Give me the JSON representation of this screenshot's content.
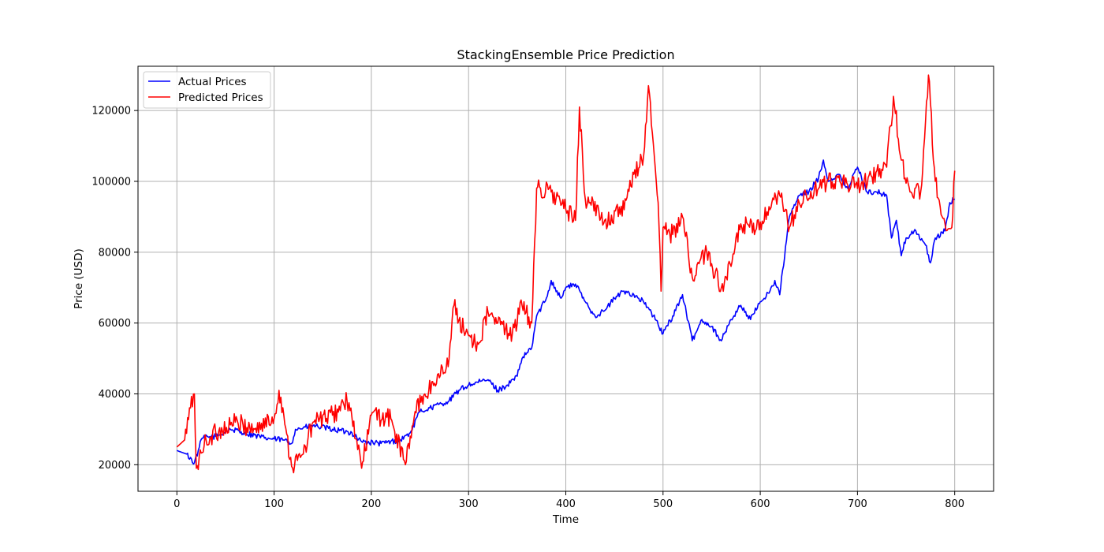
{
  "chart_data": {
    "type": "line",
    "title": "StackingEnsemble Price Prediction",
    "xlabel": "Time",
    "ylabel": "Price (USD)",
    "xlim": [
      -40,
      840
    ],
    "ylim": [
      12500,
      132500
    ],
    "xticks": [
      0,
      100,
      200,
      300,
      400,
      500,
      600,
      700,
      800
    ],
    "yticks": [
      20000,
      40000,
      60000,
      80000,
      100000,
      120000
    ],
    "grid": true,
    "legend": "top-left",
    "series": [
      {
        "name": "Actual Prices",
        "color": "#0000ff",
        "anchors": [
          [
            0,
            24000
          ],
          [
            10,
            23000
          ],
          [
            18,
            20500
          ],
          [
            22,
            24000
          ],
          [
            26,
            27500
          ],
          [
            40,
            28000
          ],
          [
            55,
            30000
          ],
          [
            70,
            29000
          ],
          [
            90,
            27500
          ],
          [
            110,
            27000
          ],
          [
            118,
            26000
          ],
          [
            122,
            30000
          ],
          [
            140,
            31000
          ],
          [
            160,
            30000
          ],
          [
            180,
            29000
          ],
          [
            190,
            26500
          ],
          [
            210,
            26000
          ],
          [
            230,
            27000
          ],
          [
            240,
            29000
          ],
          [
            250,
            35000
          ],
          [
            260,
            36000
          ],
          [
            280,
            38000
          ],
          [
            290,
            41000
          ],
          [
            300,
            42500
          ],
          [
            320,
            44000
          ],
          [
            330,
            41000
          ],
          [
            340,
            42500
          ],
          [
            350,
            45000
          ],
          [
            355,
            50000
          ],
          [
            365,
            53000
          ],
          [
            370,
            62000
          ],
          [
            380,
            67000
          ],
          [
            385,
            72000
          ],
          [
            395,
            67000
          ],
          [
            400,
            70000
          ],
          [
            410,
            71000
          ],
          [
            420,
            66000
          ],
          [
            430,
            62000
          ],
          [
            440,
            63500
          ],
          [
            450,
            67000
          ],
          [
            460,
            69000
          ],
          [
            470,
            68000
          ],
          [
            480,
            66000
          ],
          [
            490,
            62000
          ],
          [
            500,
            57000
          ],
          [
            510,
            62000
          ],
          [
            520,
            68000
          ],
          [
            530,
            55000
          ],
          [
            540,
            61000
          ],
          [
            550,
            59000
          ],
          [
            560,
            55000
          ],
          [
            570,
            61000
          ],
          [
            580,
            65000
          ],
          [
            590,
            61000
          ],
          [
            600,
            66000
          ],
          [
            610,
            69000
          ],
          [
            615,
            72000
          ],
          [
            620,
            68000
          ],
          [
            630,
            90000
          ],
          [
            640,
            96000
          ],
          [
            650,
            97000
          ],
          [
            660,
            101000
          ],
          [
            665,
            106000
          ],
          [
            670,
            100000
          ],
          [
            680,
            102000
          ],
          [
            690,
            98000
          ],
          [
            700,
            104000
          ],
          [
            710,
            97000
          ],
          [
            720,
            97000
          ],
          [
            730,
            96000
          ],
          [
            735,
            84000
          ],
          [
            740,
            89000
          ],
          [
            745,
            79000
          ],
          [
            750,
            84000
          ],
          [
            760,
            86000
          ],
          [
            770,
            82000
          ],
          [
            775,
            77000
          ],
          [
            780,
            84000
          ],
          [
            790,
            86000
          ],
          [
            795,
            94000
          ],
          [
            800,
            95000
          ]
        ]
      },
      {
        "name": "Predicted Prices",
        "color": "#ff0000",
        "anchors": [
          [
            0,
            25000
          ],
          [
            8,
            27000
          ],
          [
            14,
            36000
          ],
          [
            18,
            40000
          ],
          [
            20,
            19000
          ],
          [
            30,
            27000
          ],
          [
            40,
            29000
          ],
          [
            60,
            32000
          ],
          [
            80,
            30000
          ],
          [
            100,
            33000
          ],
          [
            105,
            41000
          ],
          [
            110,
            34000
          ],
          [
            118,
            19500
          ],
          [
            130,
            23000
          ],
          [
            140,
            32000
          ],
          [
            160,
            34000
          ],
          [
            175,
            38000
          ],
          [
            185,
            27000
          ],
          [
            190,
            19000
          ],
          [
            200,
            34000
          ],
          [
            220,
            33000
          ],
          [
            235,
            20000
          ],
          [
            245,
            35000
          ],
          [
            255,
            40000
          ],
          [
            265,
            43000
          ],
          [
            280,
            50000
          ],
          [
            285,
            65000
          ],
          [
            295,
            58000
          ],
          [
            310,
            54000
          ],
          [
            320,
            63000
          ],
          [
            330,
            60000
          ],
          [
            345,
            57000
          ],
          [
            355,
            65000
          ],
          [
            365,
            60000
          ],
          [
            370,
            98000
          ],
          [
            385,
            97000
          ],
          [
            400,
            92000
          ],
          [
            410,
            89000
          ],
          [
            414,
            121000
          ],
          [
            420,
            95000
          ],
          [
            440,
            89000
          ],
          [
            460,
            92000
          ],
          [
            470,
            102000
          ],
          [
            480,
            107000
          ],
          [
            485,
            127000
          ],
          [
            495,
            94000
          ],
          [
            498,
            69000
          ],
          [
            500,
            87000
          ],
          [
            510,
            85000
          ],
          [
            520,
            90000
          ],
          [
            530,
            73000
          ],
          [
            545,
            80000
          ],
          [
            560,
            70000
          ],
          [
            570,
            76000
          ],
          [
            580,
            88000
          ],
          [
            595,
            86000
          ],
          [
            610,
            92000
          ],
          [
            620,
            96000
          ],
          [
            630,
            87000
          ],
          [
            640,
            94000
          ],
          [
            660,
            98000
          ],
          [
            680,
            101000
          ],
          [
            700,
            98000
          ],
          [
            720,
            103000
          ],
          [
            730,
            104000
          ],
          [
            737,
            124000
          ],
          [
            745,
            106000
          ],
          [
            755,
            97000
          ],
          [
            765,
            97000
          ],
          [
            773,
            130000
          ],
          [
            780,
            100000
          ],
          [
            790,
            88000
          ],
          [
            797,
            87000
          ],
          [
            800,
            103000
          ]
        ]
      }
    ]
  }
}
